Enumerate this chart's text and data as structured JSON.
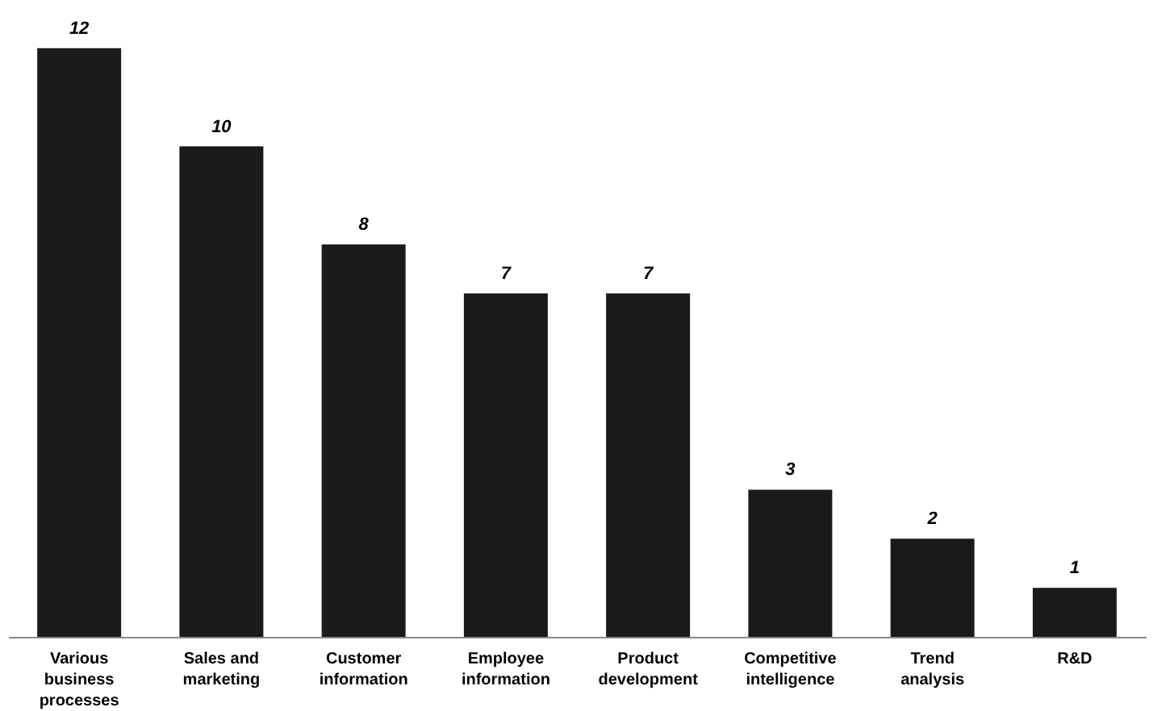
{
  "chart_data": {
    "type": "bar",
    "categories": [
      "Various business processes",
      "Sales and marketing",
      "Customer information",
      "Employee information",
      "Product development",
      "Competitive intelligence",
      "Trend analysis",
      "R&D"
    ],
    "values": [
      12,
      10,
      8,
      7,
      7,
      3,
      2,
      1
    ],
    "color": "#1a1a1a",
    "data_labels": true
  }
}
